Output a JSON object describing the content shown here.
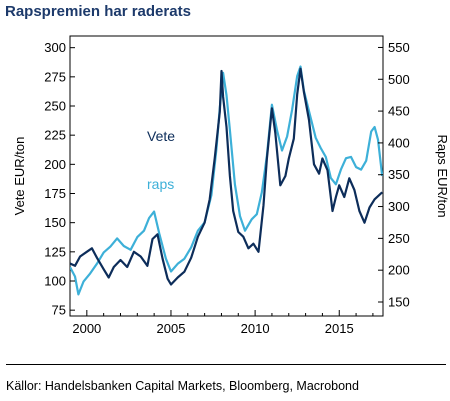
{
  "title": "Rapspremien har raderats",
  "source": "Källor: Handelsbanken Capital Markets, Bloomberg, Macrobond",
  "colors": {
    "vete": "#0d2d5a",
    "raps": "#3db0d8"
  },
  "chart_data": {
    "type": "line",
    "xlim": [
      1999.0,
      2017.6
    ],
    "x_ticks": [
      2000,
      2005,
      2010,
      2015
    ],
    "left_axis": {
      "label": "Vete EUR/ton",
      "ylim": [
        70,
        310
      ],
      "ticks": [
        75,
        100,
        125,
        150,
        175,
        200,
        225,
        250,
        275,
        300
      ]
    },
    "right_axis": {
      "label": "Raps EUR/ton",
      "ylim": [
        128,
        568
      ],
      "ticks": [
        150,
        200,
        250,
        300,
        350,
        400,
        450,
        500,
        550
      ]
    },
    "grid": false,
    "legend": "inline",
    "series": [
      {
        "name": "Vete",
        "axis": "left",
        "points": [
          [
            1999.0,
            115
          ],
          [
            1999.3,
            113
          ],
          [
            1999.6,
            121
          ],
          [
            2000.0,
            125
          ],
          [
            2000.3,
            128
          ],
          [
            2000.6,
            120
          ],
          [
            2001.0,
            110
          ],
          [
            2001.3,
            103
          ],
          [
            2001.6,
            112
          ],
          [
            2002.0,
            118
          ],
          [
            2002.4,
            112
          ],
          [
            2002.8,
            125
          ],
          [
            2003.2,
            121
          ],
          [
            2003.6,
            113
          ],
          [
            2003.9,
            136
          ],
          [
            2004.2,
            140
          ],
          [
            2004.5,
            119
          ],
          [
            2004.8,
            102
          ],
          [
            2005.0,
            97
          ],
          [
            2005.4,
            103
          ],
          [
            2005.8,
            108
          ],
          [
            2006.2,
            120
          ],
          [
            2006.6,
            138
          ],
          [
            2007.0,
            150
          ],
          [
            2007.3,
            170
          ],
          [
            2007.6,
            205
          ],
          [
            2007.9,
            245
          ],
          [
            2008.0,
            280
          ],
          [
            2008.1,
            258
          ],
          [
            2008.3,
            232
          ],
          [
            2008.5,
            190
          ],
          [
            2008.7,
            160
          ],
          [
            2009.0,
            142
          ],
          [
            2009.3,
            138
          ],
          [
            2009.6,
            128
          ],
          [
            2009.9,
            132
          ],
          [
            2010.2,
            125
          ],
          [
            2010.5,
            165
          ],
          [
            2010.7,
            205
          ],
          [
            2011.0,
            248
          ],
          [
            2011.2,
            227
          ],
          [
            2011.5,
            182
          ],
          [
            2011.8,
            190
          ],
          [
            2012.0,
            205
          ],
          [
            2012.3,
            222
          ],
          [
            2012.5,
            260
          ],
          [
            2012.7,
            282
          ],
          [
            2012.9,
            262
          ],
          [
            2013.2,
            238
          ],
          [
            2013.5,
            200
          ],
          [
            2013.8,
            192
          ],
          [
            2014.0,
            205
          ],
          [
            2014.3,
            195
          ],
          [
            2014.6,
            160
          ],
          [
            2014.8,
            172
          ],
          [
            2015.0,
            182
          ],
          [
            2015.3,
            172
          ],
          [
            2015.6,
            188
          ],
          [
            2015.9,
            178
          ],
          [
            2016.2,
            160
          ],
          [
            2016.5,
            150
          ],
          [
            2016.8,
            163
          ],
          [
            2017.1,
            170
          ],
          [
            2017.4,
            174
          ],
          [
            2017.55,
            176
          ]
        ]
      },
      {
        "name": "raps",
        "axis": "right",
        "points": [
          [
            1999.0,
            205
          ],
          [
            1999.3,
            190
          ],
          [
            1999.5,
            162
          ],
          [
            1999.8,
            182
          ],
          [
            2000.2,
            195
          ],
          [
            2000.6,
            210
          ],
          [
            2001.0,
            228
          ],
          [
            2001.4,
            237
          ],
          [
            2001.8,
            250
          ],
          [
            2002.2,
            238
          ],
          [
            2002.6,
            232
          ],
          [
            2003.0,
            252
          ],
          [
            2003.4,
            262
          ],
          [
            2003.7,
            282
          ],
          [
            2004.0,
            292
          ],
          [
            2004.3,
            258
          ],
          [
            2004.7,
            218
          ],
          [
            2005.0,
            198
          ],
          [
            2005.4,
            210
          ],
          [
            2005.8,
            218
          ],
          [
            2006.2,
            236
          ],
          [
            2006.6,
            262
          ],
          [
            2007.0,
            275
          ],
          [
            2007.4,
            318
          ],
          [
            2007.7,
            390
          ],
          [
            2007.9,
            455
          ],
          [
            2008.1,
            510
          ],
          [
            2008.3,
            475
          ],
          [
            2008.5,
            420
          ],
          [
            2008.8,
            335
          ],
          [
            2009.1,
            285
          ],
          [
            2009.4,
            262
          ],
          [
            2009.8,
            280
          ],
          [
            2010.1,
            288
          ],
          [
            2010.4,
            322
          ],
          [
            2010.7,
            380
          ],
          [
            2011.0,
            460
          ],
          [
            2011.3,
            420
          ],
          [
            2011.6,
            388
          ],
          [
            2011.9,
            410
          ],
          [
            2012.2,
            452
          ],
          [
            2012.5,
            505
          ],
          [
            2012.7,
            520
          ],
          [
            2012.9,
            482
          ],
          [
            2013.2,
            450
          ],
          [
            2013.6,
            408
          ],
          [
            2013.9,
            392
          ],
          [
            2014.2,
            378
          ],
          [
            2014.5,
            345
          ],
          [
            2014.8,
            335
          ],
          [
            2015.1,
            358
          ],
          [
            2015.4,
            376
          ],
          [
            2015.7,
            378
          ],
          [
            2016.0,
            362
          ],
          [
            2016.3,
            358
          ],
          [
            2016.6,
            372
          ],
          [
            2016.9,
            418
          ],
          [
            2017.1,
            425
          ],
          [
            2017.3,
            405
          ],
          [
            2017.55,
            348
          ]
        ]
      }
    ]
  }
}
